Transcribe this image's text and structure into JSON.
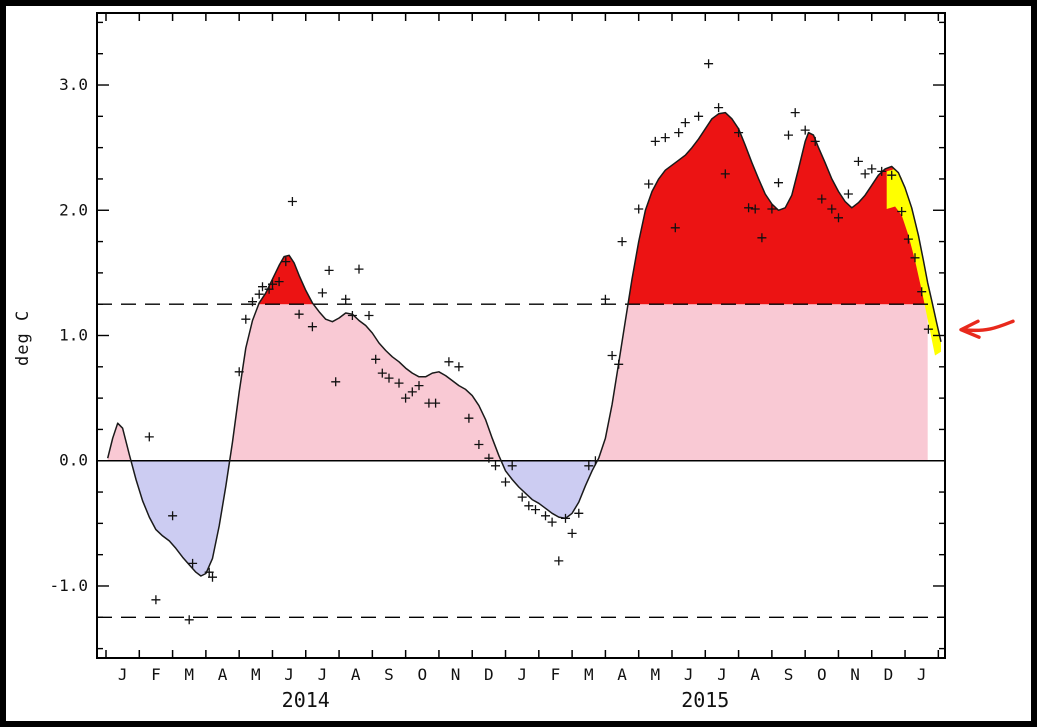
{
  "window": {
    "background": "#ffffff",
    "frame_color": "#000000"
  },
  "chart_data": {
    "type": "area",
    "title": "",
    "ylabel": "deg C",
    "x_axis": {
      "months_total": 25.2,
      "month_letters": [
        "J",
        "F",
        "M",
        "A",
        "M",
        "J",
        "J",
        "A",
        "S",
        "O",
        "N",
        "D",
        "J",
        "F",
        "M",
        "A",
        "M",
        "J",
        "J",
        "A",
        "S",
        "O",
        "N",
        "D",
        "J"
      ],
      "year_labels": [
        {
          "text": "2014",
          "center_month": 6
        },
        {
          "text": "2015",
          "center_month": 18
        }
      ]
    },
    "y_axis": {
      "ylim": [
        -1.575,
        3.575
      ],
      "major_ticks": [
        -1,
        0,
        1,
        2,
        3
      ],
      "tick_labels": [
        "-1.0",
        "0.0",
        "1.0",
        "2.0",
        "3.0"
      ],
      "minor_step": 0.25
    },
    "thresholds": {
      "upper_dashed": 1.25,
      "lower_dashed": -1.25,
      "zero": 0
    },
    "colors": {
      "fill_above_threshold": "#ec1313",
      "fill_positive": "#f9c9d4",
      "fill_negative": "#ccccf2",
      "fill_recent": "#ffff00",
      "curve": "#1a1a1a",
      "marker": "#111111",
      "arrow": "#e8291c"
    },
    "curve_monthly_anomaly": [
      [
        0.05,
        0.02
      ],
      [
        0.2,
        0.18
      ],
      [
        0.35,
        0.3
      ],
      [
        0.5,
        0.26
      ],
      [
        0.7,
        0.05
      ],
      [
        0.9,
        -0.15
      ],
      [
        1.1,
        -0.32
      ],
      [
        1.3,
        -0.45
      ],
      [
        1.5,
        -0.55
      ],
      [
        1.7,
        -0.6
      ],
      [
        1.9,
        -0.64
      ],
      [
        2.1,
        -0.7
      ],
      [
        2.3,
        -0.77
      ],
      [
        2.5,
        -0.83
      ],
      [
        2.7,
        -0.89
      ],
      [
        2.85,
        -0.92
      ],
      [
        3.0,
        -0.9
      ],
      [
        3.2,
        -0.78
      ],
      [
        3.4,
        -0.52
      ],
      [
        3.6,
        -0.2
      ],
      [
        3.8,
        0.15
      ],
      [
        4.0,
        0.55
      ],
      [
        4.2,
        0.9
      ],
      [
        4.4,
        1.12
      ],
      [
        4.6,
        1.26
      ],
      [
        4.8,
        1.34
      ],
      [
        5.0,
        1.45
      ],
      [
        5.2,
        1.56
      ],
      [
        5.35,
        1.63
      ],
      [
        5.5,
        1.64
      ],
      [
        5.65,
        1.58
      ],
      [
        5.8,
        1.48
      ],
      [
        6.0,
        1.36
      ],
      [
        6.2,
        1.26
      ],
      [
        6.4,
        1.19
      ],
      [
        6.6,
        1.13
      ],
      [
        6.8,
        1.11
      ],
      [
        7.0,
        1.14
      ],
      [
        7.2,
        1.18
      ],
      [
        7.4,
        1.17
      ],
      [
        7.6,
        1.12
      ],
      [
        7.8,
        1.08
      ],
      [
        8.0,
        1.02
      ],
      [
        8.2,
        0.94
      ],
      [
        8.4,
        0.88
      ],
      [
        8.6,
        0.83
      ],
      [
        8.8,
        0.79
      ],
      [
        9.0,
        0.74
      ],
      [
        9.2,
        0.7
      ],
      [
        9.4,
        0.67
      ],
      [
        9.6,
        0.67
      ],
      [
        9.8,
        0.7
      ],
      [
        10.0,
        0.71
      ],
      [
        10.2,
        0.68
      ],
      [
        10.4,
        0.64
      ],
      [
        10.6,
        0.6
      ],
      [
        10.8,
        0.57
      ],
      [
        11.0,
        0.52
      ],
      [
        11.2,
        0.44
      ],
      [
        11.4,
        0.33
      ],
      [
        11.6,
        0.18
      ],
      [
        11.8,
        0.04
      ],
      [
        12.0,
        -0.08
      ],
      [
        12.2,
        -0.15
      ],
      [
        12.4,
        -0.21
      ],
      [
        12.6,
        -0.26
      ],
      [
        12.8,
        -0.31
      ],
      [
        13.0,
        -0.34
      ],
      [
        13.2,
        -0.38
      ],
      [
        13.4,
        -0.42
      ],
      [
        13.6,
        -0.45
      ],
      [
        13.8,
        -0.46
      ],
      [
        14.0,
        -0.42
      ],
      [
        14.2,
        -0.33
      ],
      [
        14.4,
        -0.2
      ],
      [
        14.6,
        -0.08
      ],
      [
        14.8,
        0.02
      ],
      [
        15.0,
        0.18
      ],
      [
        15.2,
        0.45
      ],
      [
        15.4,
        0.78
      ],
      [
        15.6,
        1.12
      ],
      [
        15.8,
        1.45
      ],
      [
        16.0,
        1.75
      ],
      [
        16.2,
        2.0
      ],
      [
        16.4,
        2.15
      ],
      [
        16.6,
        2.25
      ],
      [
        16.8,
        2.32
      ],
      [
        17.0,
        2.36
      ],
      [
        17.2,
        2.4
      ],
      [
        17.4,
        2.44
      ],
      [
        17.6,
        2.5
      ],
      [
        17.8,
        2.57
      ],
      [
        18.0,
        2.65
      ],
      [
        18.2,
        2.73
      ],
      [
        18.4,
        2.77
      ],
      [
        18.6,
        2.78
      ],
      [
        18.8,
        2.73
      ],
      [
        19.0,
        2.65
      ],
      [
        19.2,
        2.52
      ],
      [
        19.4,
        2.38
      ],
      [
        19.6,
        2.25
      ],
      [
        19.8,
        2.13
      ],
      [
        20.0,
        2.05
      ],
      [
        20.2,
        2.0
      ],
      [
        20.4,
        2.02
      ],
      [
        20.6,
        2.12
      ],
      [
        20.8,
        2.33
      ],
      [
        21.0,
        2.55
      ],
      [
        21.1,
        2.62
      ],
      [
        21.25,
        2.6
      ],
      [
        21.4,
        2.5
      ],
      [
        21.6,
        2.38
      ],
      [
        21.8,
        2.25
      ],
      [
        22.0,
        2.15
      ],
      [
        22.2,
        2.07
      ],
      [
        22.4,
        2.02
      ],
      [
        22.6,
        2.06
      ],
      [
        22.8,
        2.12
      ],
      [
        23.0,
        2.2
      ],
      [
        23.2,
        2.28
      ],
      [
        23.4,
        2.33
      ],
      [
        23.6,
        2.35
      ],
      [
        23.8,
        2.3
      ],
      [
        24.0,
        2.18
      ],
      [
        24.2,
        2.02
      ],
      [
        24.4,
        1.8
      ],
      [
        24.55,
        1.6
      ],
      [
        24.68,
        1.42
      ],
      [
        24.8,
        1.28
      ],
      [
        24.95,
        1.1
      ],
      [
        25.08,
        0.95
      ]
    ],
    "fill_end_month": 24.68,
    "recent_band": {
      "top_points": [
        [
          23.45,
          2.31
        ],
        [
          23.7,
          2.33
        ],
        [
          23.9,
          2.26
        ],
        [
          24.1,
          2.1
        ],
        [
          24.3,
          1.9
        ],
        [
          24.5,
          1.66
        ],
        [
          24.7,
          1.4
        ],
        [
          24.9,
          1.14
        ],
        [
          25.08,
          0.95
        ]
      ],
      "thickness": 0.3
    },
    "markers_weekly_obs": [
      [
        1.3,
        0.19
      ],
      [
        1.5,
        -1.11
      ],
      [
        2.0,
        -0.44
      ],
      [
        2.5,
        -1.27
      ],
      [
        2.6,
        -0.82
      ],
      [
        3.1,
        -0.89
      ],
      [
        3.2,
        -0.93
      ],
      [
        4.0,
        0.71
      ],
      [
        4.2,
        1.13
      ],
      [
        4.4,
        1.27
      ],
      [
        4.6,
        1.33
      ],
      [
        4.7,
        1.39
      ],
      [
        4.9,
        1.37
      ],
      [
        5.0,
        1.41
      ],
      [
        5.2,
        1.43
      ],
      [
        5.4,
        1.59
      ],
      [
        5.6,
        2.07
      ],
      [
        5.8,
        1.17
      ],
      [
        6.2,
        1.07
      ],
      [
        6.5,
        1.34
      ],
      [
        6.7,
        1.52
      ],
      [
        6.9,
        0.63
      ],
      [
        7.2,
        1.29
      ],
      [
        7.4,
        1.16
      ],
      [
        7.6,
        1.53
      ],
      [
        7.9,
        1.16
      ],
      [
        8.1,
        0.81
      ],
      [
        8.3,
        0.7
      ],
      [
        8.5,
        0.66
      ],
      [
        8.8,
        0.62
      ],
      [
        9.0,
        0.5
      ],
      [
        9.2,
        0.55
      ],
      [
        9.4,
        0.6
      ],
      [
        9.7,
        0.46
      ],
      [
        9.9,
        0.46
      ],
      [
        10.3,
        0.79
      ],
      [
        10.6,
        0.75
      ],
      [
        10.9,
        0.34
      ],
      [
        11.2,
        0.13
      ],
      [
        11.5,
        0.02
      ],
      [
        11.7,
        -0.04
      ],
      [
        12.0,
        -0.17
      ],
      [
        12.2,
        -0.04
      ],
      [
        12.5,
        -0.29
      ],
      [
        12.7,
        -0.36
      ],
      [
        12.9,
        -0.39
      ],
      [
        13.2,
        -0.44
      ],
      [
        13.4,
        -0.49
      ],
      [
        13.6,
        -0.8
      ],
      [
        13.8,
        -0.46
      ],
      [
        14.0,
        -0.58
      ],
      [
        14.2,
        -0.42
      ],
      [
        14.5,
        -0.04
      ],
      [
        14.7,
        0.0
      ],
      [
        15.0,
        1.29
      ],
      [
        15.2,
        0.84
      ],
      [
        15.4,
        0.77
      ],
      [
        15.5,
        1.75
      ],
      [
        16.0,
        2.01
      ],
      [
        16.3,
        2.21
      ],
      [
        16.5,
        2.55
      ],
      [
        16.8,
        2.58
      ],
      [
        17.1,
        1.86
      ],
      [
        17.2,
        2.62
      ],
      [
        17.4,
        2.7
      ],
      [
        17.8,
        2.75
      ],
      [
        18.1,
        3.17
      ],
      [
        18.4,
        2.82
      ],
      [
        18.6,
        2.29
      ],
      [
        19.0,
        2.62
      ],
      [
        19.3,
        2.02
      ],
      [
        19.5,
        2.01
      ],
      [
        19.7,
        1.78
      ],
      [
        20.0,
        2.01
      ],
      [
        20.2,
        2.22
      ],
      [
        20.5,
        2.6
      ],
      [
        20.7,
        2.78
      ],
      [
        21.0,
        2.64
      ],
      [
        21.3,
        2.55
      ],
      [
        21.5,
        2.09
      ],
      [
        21.8,
        2.01
      ],
      [
        22.0,
        1.94
      ],
      [
        22.3,
        2.13
      ],
      [
        22.6,
        2.39
      ],
      [
        22.8,
        2.29
      ],
      [
        23.0,
        2.33
      ],
      [
        23.3,
        2.31
      ],
      [
        23.6,
        2.28
      ],
      [
        23.9,
        1.99
      ],
      [
        24.1,
        1.77
      ],
      [
        24.3,
        1.62
      ],
      [
        24.5,
        1.35
      ],
      [
        24.7,
        1.05
      ]
    ],
    "annotation_arrow": {
      "points_at_value": 1.05
    }
  }
}
